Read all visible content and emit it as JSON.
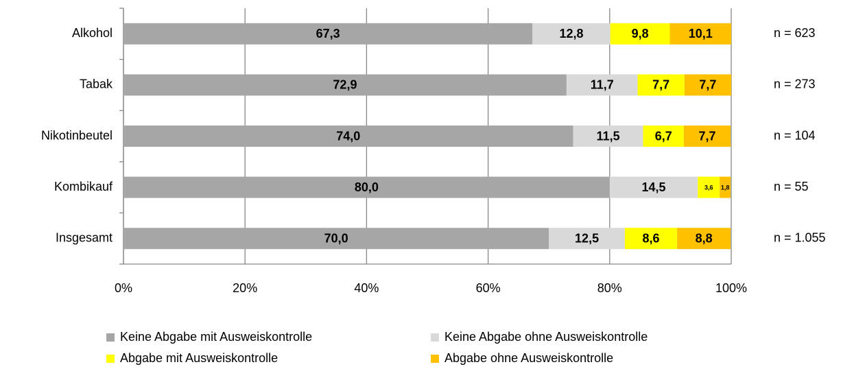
{
  "chart_data": {
    "type": "stacked-bar-horizontal",
    "categories": [
      "Alkohol",
      "Tabak",
      "Nikotinbeutel",
      "Kombikauf",
      "Insgesamt"
    ],
    "series": [
      {
        "name": "Keine Abgabe mit Ausweiskontrolle",
        "color": "#a6a6a6",
        "values": [
          67.3,
          72.9,
          74.0,
          80.0,
          70.0
        ],
        "value_labels": [
          "67,3",
          "72,9",
          "74,0",
          "80,0",
          "70,0"
        ]
      },
      {
        "name": "Keine Abgabe ohne Ausweiskontrolle",
        "color": "#d9d9d9",
        "values": [
          12.8,
          11.7,
          11.5,
          14.5,
          12.5
        ],
        "value_labels": [
          "12,8",
          "11,7",
          "11,5",
          "14,5",
          "12,5"
        ]
      },
      {
        "name": "Abgabe mit Ausweiskontrolle",
        "color": "#ffff00",
        "values": [
          9.8,
          7.7,
          6.7,
          3.6,
          8.6
        ],
        "value_labels": [
          "9,8",
          "7,7",
          "6,7",
          "3,6",
          "8,6"
        ]
      },
      {
        "name": "Abgabe ohne Ausweiskontrolle",
        "color": "#ffc000",
        "values": [
          10.1,
          7.7,
          7.7,
          1.8,
          8.8
        ],
        "value_labels": [
          "10,1",
          "7,7",
          "7,7",
          "1,8",
          "8,8"
        ]
      }
    ],
    "annotations": [
      "n = 623",
      "n = 273",
      "n = 104",
      "n = 55",
      "n = 1.055"
    ],
    "xlim": [
      0,
      100
    ],
    "xticks": [
      {
        "value": 0,
        "label": "0%"
      },
      {
        "value": 20,
        "label": "20%"
      },
      {
        "value": 40,
        "label": "40%"
      },
      {
        "value": 60,
        "label": "60%"
      },
      {
        "value": 80,
        "label": "80%"
      },
      {
        "value": 100,
        "label": "100%"
      }
    ],
    "grid": true
  }
}
